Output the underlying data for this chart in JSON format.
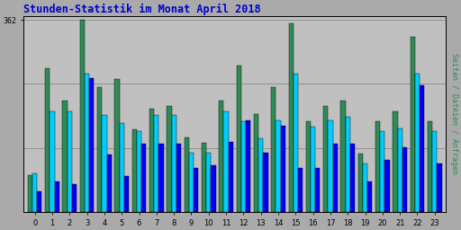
{
  "title": "Stunden-Statistik im Monat April 2018",
  "title_color": "#0000CC",
  "ylabel_right": "Seiten / Dateien / Anfragen",
  "ytick_label": "362",
  "hours": [
    0,
    1,
    2,
    3,
    4,
    5,
    6,
    7,
    8,
    9,
    10,
    11,
    12,
    13,
    14,
    15,
    16,
    17,
    18,
    19,
    20,
    21,
    22,
    23
  ],
  "max_val": 362,
  "seiten": [
    70,
    270,
    210,
    362,
    235,
    250,
    155,
    195,
    200,
    140,
    130,
    210,
    275,
    185,
    235,
    355,
    170,
    200,
    210,
    110,
    170,
    190,
    330,
    170
  ],
  "dateien": [
    72,
    190,
    190,
    260,
    182,
    168,
    152,
    182,
    182,
    112,
    112,
    190,
    170,
    138,
    172,
    260,
    160,
    172,
    180,
    92,
    152,
    158,
    260,
    152
  ],
  "anfragen": [
    38,
    58,
    52,
    252,
    108,
    68,
    128,
    128,
    128,
    82,
    88,
    132,
    172,
    112,
    162,
    82,
    82,
    128,
    128,
    58,
    98,
    122,
    238,
    92
  ],
  "color_seiten": "#2E8B57",
  "color_dateien": "#00CCFF",
  "color_anfragen": "#0000EE",
  "bg_color": "#AAAAAA",
  "plot_bg": "#C0C0C0",
  "grid_color": "#888888",
  "border_color": "#000000",
  "bar_width": 0.27,
  "figsize": [
    5.12,
    2.56
  ],
  "dpi": 100
}
